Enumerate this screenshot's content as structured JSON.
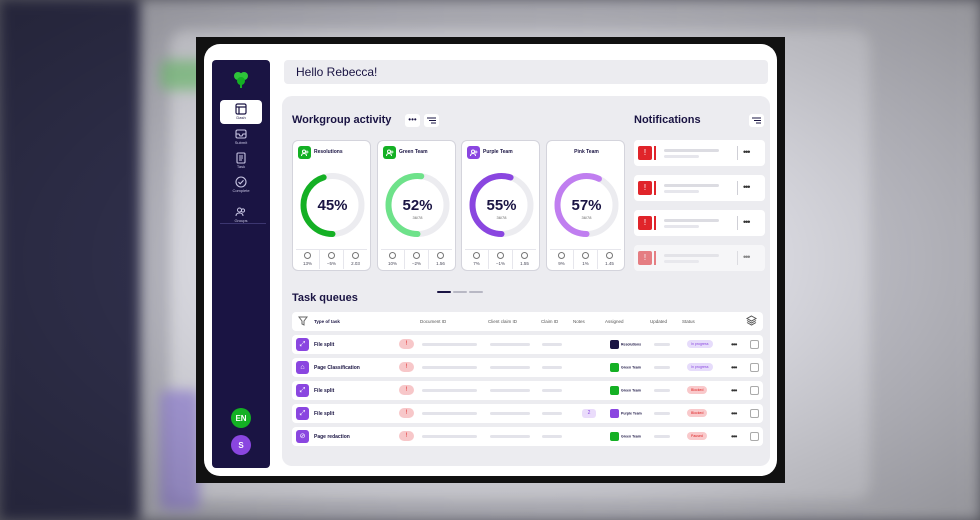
{
  "greeting": "Hello Rebecca!",
  "sidebar": {
    "items": [
      {
        "label": "Dash",
        "icon": "dashboard-icon",
        "active": true
      },
      {
        "label": "Submit",
        "icon": "inbox-icon",
        "active": false
      },
      {
        "label": "Task",
        "icon": "document-icon",
        "active": false
      },
      {
        "label": "Complete",
        "icon": "check-circle-icon",
        "active": false
      },
      {
        "label": "Groups",
        "icon": "users-icon",
        "active": false
      }
    ],
    "language": "EN",
    "avatar_initial": "S"
  },
  "workgroup": {
    "title": "Workgroup activity",
    "more_label": "•••",
    "cards": [
      {
        "name": "Resolutions",
        "percent_label": "45%",
        "progress": 0.45,
        "sub": "",
        "color": "#14b024",
        "chip_color": "#14b024",
        "stats": [
          "13%",
          "−5%",
          "2.03"
        ]
      },
      {
        "name": "Green Team",
        "percent_label": "52%",
        "progress": 0.52,
        "sub": "36/78",
        "color": "#6ee28a",
        "chip_color": "#14b024",
        "stats": [
          "10%",
          "−2%",
          "1.56"
        ]
      },
      {
        "name": "Purple Team",
        "percent_label": "55%",
        "progress": 0.55,
        "sub": "36/78",
        "color": "#8a46e0",
        "chip_color": "#8a46e0",
        "stats": [
          "7%",
          "−1%",
          "1.55"
        ]
      },
      {
        "name": "Pink Team",
        "percent_label": "57%",
        "progress": 0.57,
        "sub": "36/78",
        "color": "#c07ef0",
        "chip_color": "",
        "stats": [
          "9%",
          "1%",
          "1.45"
        ]
      }
    ]
  },
  "notifications": {
    "title": "Notifications",
    "count": 4
  },
  "task_queues": {
    "title": "Task queues",
    "columns": [
      "Type of task",
      "Document ID",
      "Client claim ID",
      "Claim ID",
      "Notes",
      "Assigned",
      "Updated",
      "Status"
    ],
    "rows": [
      {
        "task": "File split",
        "assigned": "Resolutions",
        "assigned_color": "#1a1443",
        "status": "In progress",
        "status_bg": "#e6dcfb",
        "status_fg": "#8a46e0",
        "note": ""
      },
      {
        "task": "Page Classification",
        "assigned": "Green Team",
        "assigned_color": "#14b024",
        "status": "In progress",
        "status_bg": "#e6dcfb",
        "status_fg": "#8a46e0",
        "note": ""
      },
      {
        "task": "File split",
        "assigned": "Green Team",
        "assigned_color": "#14b024",
        "status": "Blocked",
        "status_bg": "#f9c9cb",
        "status_fg": "#d22",
        "note": ""
      },
      {
        "task": "File split",
        "assigned": "Purple Team",
        "assigned_color": "#8a46e0",
        "status": "Blocked",
        "status_bg": "#f9c9cb",
        "status_fg": "#d22",
        "note": "2"
      },
      {
        "task": "Page redaction",
        "assigned": "Green Team",
        "assigned_color": "#14b024",
        "status": "Paused",
        "status_bg": "#f9c9cb",
        "status_fg": "#d22",
        "note": ""
      }
    ]
  }
}
